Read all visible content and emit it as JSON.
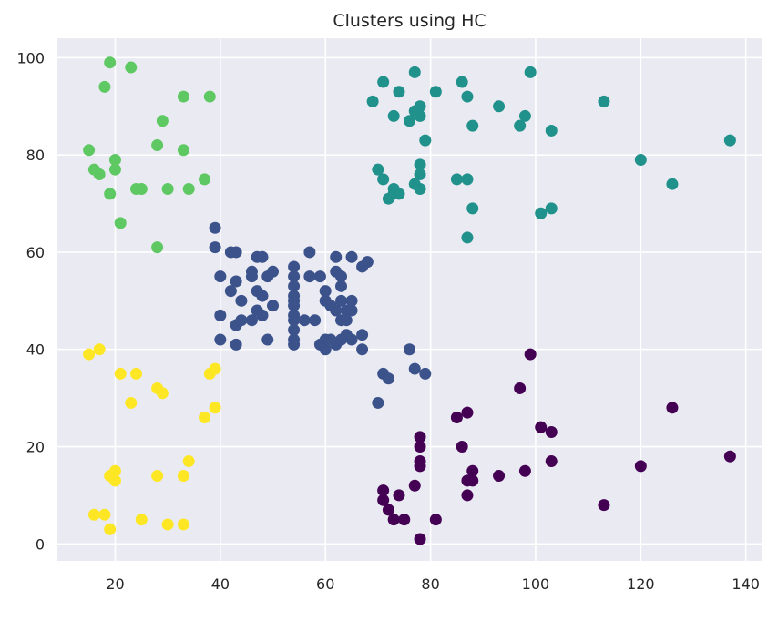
{
  "chart_data": {
    "type": "scatter",
    "title": "Clusters using HC",
    "xlabel": "",
    "ylabel": "",
    "xlim": [
      9,
      143
    ],
    "ylim": [
      -3.5,
      104
    ],
    "xticks": [
      20,
      40,
      60,
      80,
      100,
      120,
      140
    ],
    "yticks": [
      0,
      20,
      40,
      60,
      80,
      100
    ],
    "grid": true,
    "legend": "none",
    "series": [
      {
        "color": "#440154",
        "points": [
          [
            78,
            1
          ],
          [
            73,
            5
          ],
          [
            75,
            5
          ],
          [
            81,
            5
          ],
          [
            72,
            7
          ],
          [
            71,
            9
          ],
          [
            74,
            10
          ],
          [
            87,
            10
          ],
          [
            71,
            11
          ],
          [
            77,
            12
          ],
          [
            113,
            8
          ],
          [
            87,
            13
          ],
          [
            88,
            13
          ],
          [
            93,
            14
          ],
          [
            88,
            15
          ],
          [
            98,
            15
          ],
          [
            78,
            16
          ],
          [
            120,
            16
          ],
          [
            78,
            17
          ],
          [
            103,
            17
          ],
          [
            137,
            18
          ],
          [
            78,
            20
          ],
          [
            86,
            20
          ],
          [
            78,
            22
          ],
          [
            101,
            24
          ],
          [
            103,
            23
          ],
          [
            85,
            26
          ],
          [
            87,
            27
          ],
          [
            126,
            28
          ],
          [
            97,
            32
          ],
          [
            99,
            39
          ]
        ]
      },
      {
        "color": "#3b528b",
        "points": [
          [
            39,
            65
          ],
          [
            39,
            61
          ],
          [
            42,
            60
          ],
          [
            43,
            60
          ],
          [
            47,
            59
          ],
          [
            48,
            59
          ],
          [
            57,
            60
          ],
          [
            54,
            57
          ],
          [
            62,
            59
          ],
          [
            65,
            59
          ],
          [
            68,
            58
          ],
          [
            67,
            57
          ],
          [
            40,
            55
          ],
          [
            43,
            54
          ],
          [
            46,
            56
          ],
          [
            46,
            55
          ],
          [
            49,
            55
          ],
          [
            50,
            56
          ],
          [
            54,
            55
          ],
          [
            57,
            55
          ],
          [
            59,
            55
          ],
          [
            62,
            56
          ],
          [
            63,
            55
          ],
          [
            42,
            52
          ],
          [
            44,
            50
          ],
          [
            47,
            52
          ],
          [
            48,
            51
          ],
          [
            50,
            49
          ],
          [
            54,
            53
          ],
          [
            54,
            51
          ],
          [
            54,
            50
          ],
          [
            54,
            49
          ],
          [
            54,
            47
          ],
          [
            60,
            52
          ],
          [
            60,
            50
          ],
          [
            61,
            49
          ],
          [
            62,
            48
          ],
          [
            63,
            50
          ],
          [
            63,
            53
          ],
          [
            64,
            48
          ],
          [
            65,
            50
          ],
          [
            65,
            48
          ],
          [
            40,
            47
          ],
          [
            46,
            46
          ],
          [
            47,
            48
          ],
          [
            48,
            47
          ],
          [
            43,
            45
          ],
          [
            44,
            46
          ],
          [
            54,
            46
          ],
          [
            54,
            44
          ],
          [
            56,
            46
          ],
          [
            58,
            46
          ],
          [
            63,
            46
          ],
          [
            64,
            46
          ],
          [
            40,
            42
          ],
          [
            43,
            41
          ],
          [
            49,
            42
          ],
          [
            54,
            42
          ],
          [
            54,
            41
          ],
          [
            59,
            41
          ],
          [
            60,
            40
          ],
          [
            60,
            42
          ],
          [
            61,
            42
          ],
          [
            62,
            41
          ],
          [
            63,
            42
          ],
          [
            64,
            43
          ],
          [
            65,
            42
          ],
          [
            67,
            43
          ],
          [
            67,
            40
          ],
          [
            70,
            29
          ],
          [
            71,
            35
          ],
          [
            72,
            34
          ],
          [
            76,
            40
          ],
          [
            77,
            36
          ],
          [
            79,
            35
          ]
        ]
      },
      {
        "color": "#21918c",
        "points": [
          [
            77,
            97
          ],
          [
            86,
            95
          ],
          [
            71,
            95
          ],
          [
            74,
            93
          ],
          [
            81,
            93
          ],
          [
            87,
            92
          ],
          [
            99,
            97
          ],
          [
            113,
            91
          ],
          [
            69,
            91
          ],
          [
            93,
            90
          ],
          [
            78,
            90
          ],
          [
            77,
            89
          ],
          [
            78,
            88
          ],
          [
            73,
            88
          ],
          [
            76,
            87
          ],
          [
            98,
            88
          ],
          [
            97,
            86
          ],
          [
            88,
            86
          ],
          [
            103,
            85
          ],
          [
            79,
            83
          ],
          [
            137,
            83
          ],
          [
            120,
            79
          ],
          [
            70,
            77
          ],
          [
            78,
            78
          ],
          [
            78,
            76
          ],
          [
            71,
            75
          ],
          [
            85,
            75
          ],
          [
            87,
            75
          ],
          [
            77,
            74
          ],
          [
            78,
            73
          ],
          [
            73,
            73
          ],
          [
            73,
            72
          ],
          [
            74,
            72
          ],
          [
            72,
            71
          ],
          [
            126,
            74
          ],
          [
            88,
            69
          ],
          [
            103,
            69
          ],
          [
            101,
            68
          ],
          [
            87,
            63
          ]
        ]
      },
      {
        "color": "#5ec962",
        "points": [
          [
            19,
            99
          ],
          [
            23,
            98
          ],
          [
            18,
            94
          ],
          [
            33,
            92
          ],
          [
            38,
            92
          ],
          [
            29,
            87
          ],
          [
            28,
            82
          ],
          [
            33,
            81
          ],
          [
            15,
            81
          ],
          [
            20,
            79
          ],
          [
            16,
            77
          ],
          [
            17,
            76
          ],
          [
            20,
            77
          ],
          [
            37,
            75
          ],
          [
            24,
            73
          ],
          [
            25,
            73
          ],
          [
            30,
            73
          ],
          [
            34,
            73
          ],
          [
            19,
            72
          ],
          [
            21,
            66
          ],
          [
            28,
            61
          ]
        ]
      },
      {
        "color": "#fde725",
        "points": [
          [
            15,
            39
          ],
          [
            17,
            40
          ],
          [
            21,
            35
          ],
          [
            24,
            35
          ],
          [
            38,
            35
          ],
          [
            39,
            36
          ],
          [
            28,
            32
          ],
          [
            29,
            31
          ],
          [
            23,
            29
          ],
          [
            39,
            28
          ],
          [
            37,
            26
          ],
          [
            34,
            17
          ],
          [
            20,
            15
          ],
          [
            19,
            14
          ],
          [
            20,
            13
          ],
          [
            28,
            14
          ],
          [
            33,
            14
          ],
          [
            16,
            6
          ],
          [
            18,
            6
          ],
          [
            25,
            5
          ],
          [
            30,
            4
          ],
          [
            33,
            4
          ],
          [
            19,
            3
          ]
        ]
      }
    ]
  }
}
